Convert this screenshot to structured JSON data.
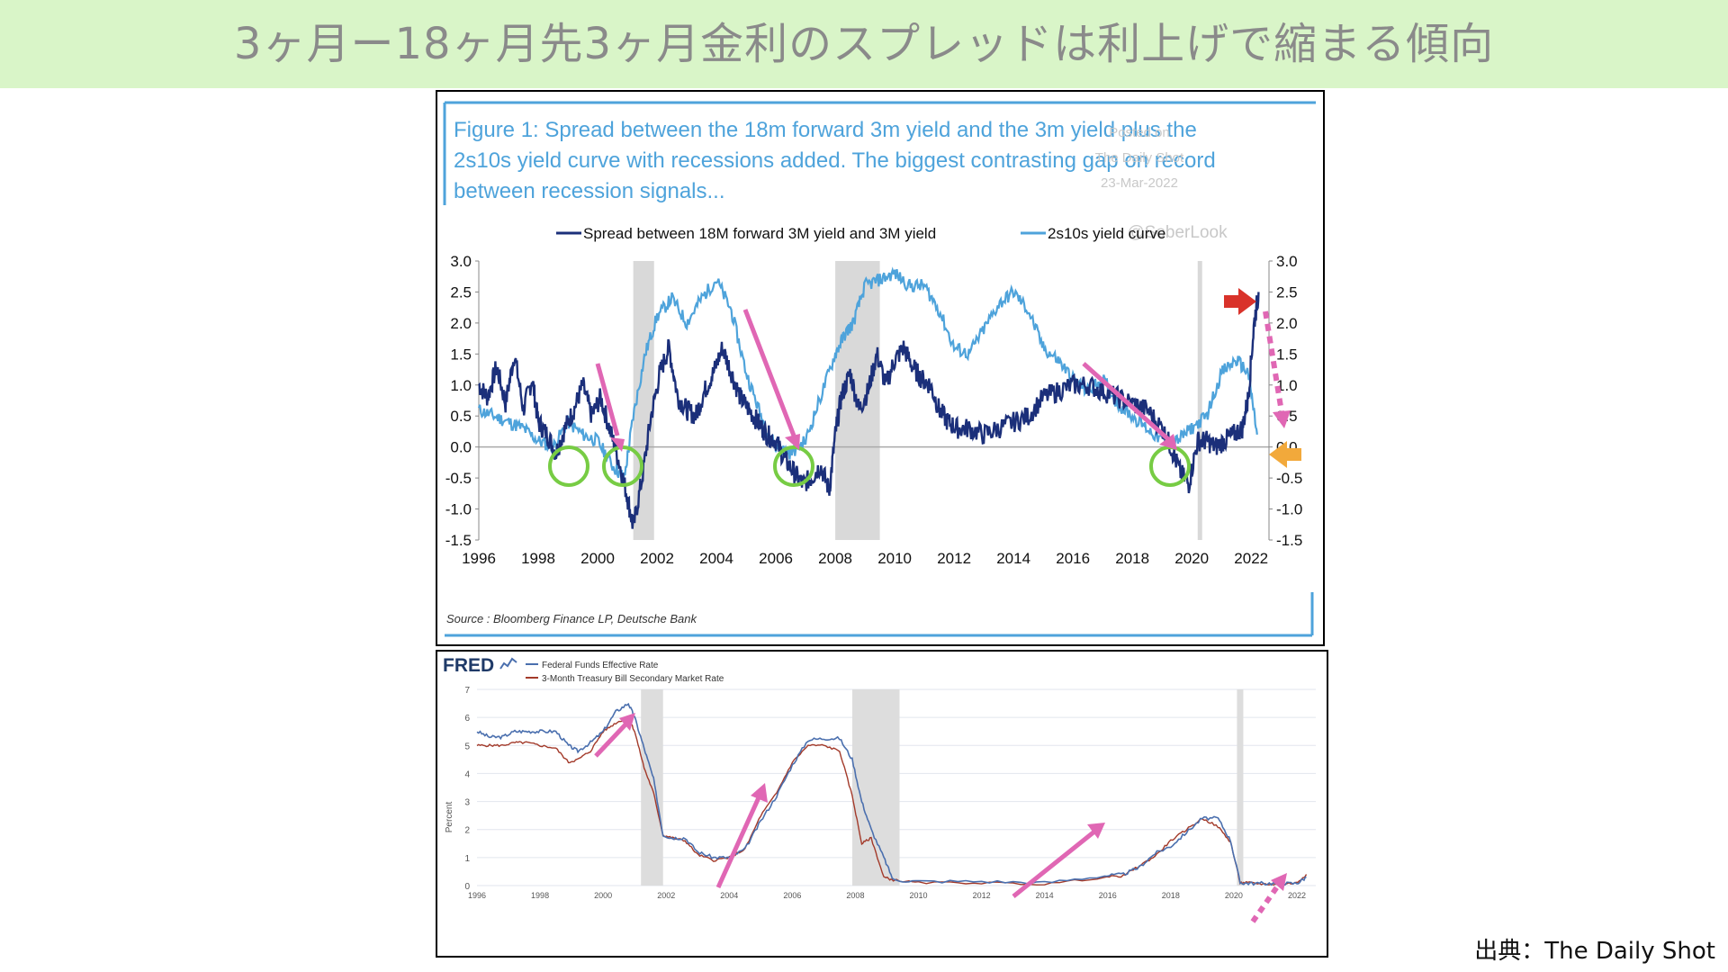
{
  "slide": {
    "title": "3ヶ月ー18ヶ月先3ヶ月金利のスプレッドは利上げで縮まる傾向",
    "credit": "出典：The Daily Shot"
  },
  "colors": {
    "title_bg": "#d9f5c8",
    "spread_line": "#1b2f7a",
    "curve_line": "#4ea3db",
    "arrow_pink": "#e067b4",
    "arrow_red": "#d9322a",
    "arrow_orange": "#f2a93b",
    "circle_green": "#77cc44",
    "fedfunds_line": "#4a6fae",
    "tbill_line": "#a33a2a"
  },
  "chart_data": [
    {
      "type": "line",
      "title": "Figure 1: Spread between the 18m forward 3m yield and the 3m yield plus the 2s10s yield curve with recessions added. The biggest contrasting gap on record between recession signals...",
      "title_lines": [
        "Figure 1: Spread between the 18m forward 3m yield and the 3m yield plus the",
        "2s10s yield curve with recessions added. The biggest contrasting gap on record",
        "between recession signals..."
      ],
      "watermark": [
        "Posted on",
        "The Daily Shot",
        "23-Mar-2022",
        "@SoberLook"
      ],
      "source": "Source : Bloomberg Finance LP, Deutsche Bank",
      "legend_position": "top",
      "xlim": [
        1996,
        2022.6
      ],
      "ylim": [
        -1.5,
        3.0
      ],
      "x_ticks": [
        "1996",
        "1998",
        "2000",
        "2002",
        "2004",
        "2006",
        "2008",
        "2010",
        "2012",
        "2014",
        "2016",
        "2018",
        "2020",
        "2022"
      ],
      "y_ticks": [
        "3.0",
        "2.5",
        "2.0",
        "1.5",
        "1.0",
        "0.5",
        "0.0",
        "-0.5",
        "-1.0",
        "-1.5"
      ],
      "recessions": [
        [
          2001.2,
          2001.9
        ],
        [
          2008.0,
          2009.5
        ],
        [
          2020.2,
          2020.35
        ]
      ],
      "series": [
        {
          "name": "Spread between 18M forward 3M yield and 3M yield",
          "x": [
            1996.0,
            1996.3,
            1996.6,
            1996.9,
            1997.2,
            1997.5,
            1997.8,
            1998.0,
            1998.3,
            1998.6,
            1998.9,
            1999.2,
            1999.5,
            1999.8,
            2000.1,
            2000.4,
            2000.7,
            2001.0,
            2001.2,
            2001.5,
            2001.8,
            2002.1,
            2002.4,
            2002.7,
            2003.0,
            2003.3,
            2003.6,
            2003.9,
            2004.2,
            2004.5,
            2004.8,
            2005.1,
            2005.4,
            2005.7,
            2006.0,
            2006.3,
            2006.6,
            2006.9,
            2007.2,
            2007.5,
            2007.8,
            2008.0,
            2008.2,
            2008.5,
            2008.8,
            2009.1,
            2009.4,
            2009.7,
            2010.0,
            2010.3,
            2010.6,
            2010.9,
            2011.2,
            2011.5,
            2011.8,
            2012.1,
            2012.5,
            2013.0,
            2013.5,
            2014.0,
            2014.5,
            2015.0,
            2015.5,
            2016.0,
            2016.5,
            2017.0,
            2017.5,
            2018.0,
            2018.5,
            2019.0,
            2019.3,
            2019.6,
            2019.9,
            2020.2,
            2020.5,
            2020.8,
            2021.1,
            2021.4,
            2021.7,
            2021.9,
            2022.1,
            2022.25
          ],
          "values": [
            1.0,
            0.8,
            1.3,
            0.7,
            1.5,
            0.6,
            1.1,
            0.4,
            0.2,
            -0.1,
            0.3,
            0.6,
            1.0,
            0.5,
            0.8,
            0.3,
            -0.2,
            -0.8,
            -1.3,
            -0.5,
            0.5,
            1.2,
            1.6,
            0.8,
            0.6,
            0.5,
            0.9,
            1.2,
            1.6,
            1.2,
            0.8,
            0.6,
            0.4,
            0.2,
            0.1,
            -0.2,
            -0.4,
            -0.6,
            -0.5,
            -0.3,
            -0.7,
            0.2,
            0.8,
            1.2,
            0.6,
            0.9,
            1.5,
            1.0,
            1.4,
            1.6,
            1.3,
            1.1,
            1.0,
            0.6,
            0.4,
            0.3,
            0.3,
            0.2,
            0.3,
            0.4,
            0.5,
            0.8,
            0.9,
            1.0,
            1.0,
            0.9,
            0.8,
            0.7,
            0.6,
            0.3,
            0.0,
            -0.4,
            -0.6,
            0.1,
            0.1,
            0.0,
            0.1,
            0.2,
            0.3,
            0.8,
            2.0,
            2.5
          ]
        },
        {
          "name": "2s10s yield curve",
          "x": [
            1996.0,
            1996.5,
            1997.0,
            1997.5,
            1998.0,
            1998.5,
            1999.0,
            1999.5,
            2000.0,
            2000.5,
            2000.9,
            2001.2,
            2001.6,
            2002.0,
            2002.5,
            2003.0,
            2003.5,
            2004.0,
            2004.5,
            2005.0,
            2005.5,
            2006.0,
            2006.5,
            2007.0,
            2007.5,
            2008.0,
            2008.3,
            2008.6,
            2009.0,
            2009.5,
            2010.0,
            2010.5,
            2011.0,
            2011.5,
            2012.0,
            2012.5,
            2013.0,
            2013.5,
            2014.0,
            2014.5,
            2015.0,
            2015.5,
            2016.0,
            2016.5,
            2017.0,
            2017.5,
            2018.0,
            2018.5,
            2019.0,
            2019.5,
            2020.0,
            2020.5,
            2021.0,
            2021.5,
            2021.9,
            2022.2
          ],
          "values": [
            0.6,
            0.5,
            0.4,
            0.3,
            0.1,
            0.0,
            0.4,
            0.2,
            0.1,
            -0.3,
            -0.5,
            0.5,
            1.5,
            2.1,
            2.4,
            2.0,
            2.4,
            2.7,
            2.2,
            1.2,
            0.5,
            0.0,
            -0.1,
            0.1,
            0.8,
            1.5,
            1.8,
            2.0,
            2.6,
            2.7,
            2.8,
            2.6,
            2.6,
            2.2,
            1.6,
            1.5,
            1.9,
            2.3,
            2.5,
            2.2,
            1.6,
            1.4,
            1.1,
            0.9,
            1.1,
            0.7,
            0.5,
            0.3,
            0.1,
            0.1,
            0.3,
            0.5,
            1.2,
            1.4,
            1.2,
            0.2
          ]
        }
      ]
    },
    {
      "type": "line",
      "brand": "FRED",
      "ylabel": "Percent",
      "legend_position": "top-left",
      "xlim": [
        1996,
        2022.6
      ],
      "ylim": [
        0,
        7
      ],
      "x_ticks": [
        "1996",
        "1998",
        "2000",
        "2002",
        "2004",
        "2006",
        "2008",
        "2010",
        "2012",
        "2014",
        "2016",
        "2018",
        "2020",
        "2022"
      ],
      "y_ticks": [
        "0",
        "1",
        "2",
        "3",
        "4",
        "5",
        "6",
        "7"
      ],
      "recessions": [
        [
          2001.2,
          2001.9
        ],
        [
          2007.9,
          2009.4
        ],
        [
          2020.1,
          2020.3
        ]
      ],
      "series": [
        {
          "name": "Federal Funds Effective Rate",
          "x": [
            1996.0,
            1996.4,
            1996.8,
            1997.2,
            1997.6,
            1998.0,
            1998.5,
            1998.9,
            1999.2,
            1999.6,
            2000.0,
            2000.4,
            2000.8,
            2001.0,
            2001.3,
            2001.6,
            2001.9,
            2002.2,
            2002.6,
            2003.0,
            2003.5,
            2004.0,
            2004.5,
            2005.0,
            2005.5,
            2006.0,
            2006.5,
            2007.0,
            2007.5,
            2007.9,
            2008.2,
            2008.5,
            2008.9,
            2009.2,
            2010,
            2012,
            2014,
            2015.9,
            2016.5,
            2017.0,
            2017.5,
            2018.0,
            2018.5,
            2019.0,
            2019.5,
            2019.9,
            2020.2,
            2020.5,
            2021.0,
            2021.5,
            2022.0,
            2022.3
          ],
          "values": [
            5.5,
            5.3,
            5.3,
            5.5,
            5.5,
            5.5,
            5.5,
            5.0,
            4.8,
            5.1,
            5.5,
            6.2,
            6.5,
            6.0,
            4.9,
            3.8,
            1.8,
            1.7,
            1.7,
            1.2,
            1.0,
            1.0,
            1.3,
            2.3,
            3.2,
            4.3,
            5.2,
            5.25,
            5.25,
            4.5,
            3.0,
            2.0,
            1.0,
            0.2,
            0.15,
            0.15,
            0.1,
            0.35,
            0.4,
            0.65,
            1.15,
            1.4,
            1.9,
            2.4,
            2.4,
            1.6,
            0.1,
            0.08,
            0.08,
            0.08,
            0.08,
            0.3
          ]
        },
        {
          "name": "3-Month Treasury Bill Secondary Market Rate",
          "x": [
            1996.0,
            1996.4,
            1996.8,
            1997.2,
            1997.6,
            1998.0,
            1998.5,
            1998.9,
            1999.2,
            1999.6,
            2000.0,
            2000.4,
            2000.8,
            2001.0,
            2001.3,
            2001.6,
            2001.9,
            2002.2,
            2002.6,
            2003.0,
            2003.5,
            2004.0,
            2004.5,
            2005.0,
            2005.5,
            2006.0,
            2006.5,
            2007.0,
            2007.5,
            2007.9,
            2008.2,
            2008.5,
            2008.9,
            2009.2,
            2010,
            2012,
            2014,
            2015.9,
            2016.5,
            2017.0,
            2017.5,
            2018.0,
            2018.5,
            2019.0,
            2019.5,
            2019.9,
            2020.2,
            2020.5,
            2021.0,
            2021.5,
            2022.0,
            2022.3
          ],
          "values": [
            5.0,
            5.0,
            5.0,
            5.1,
            5.1,
            5.0,
            4.9,
            4.4,
            4.5,
            4.8,
            5.5,
            5.8,
            6.0,
            5.5,
            4.2,
            3.3,
            1.8,
            1.7,
            1.6,
            1.1,
            0.9,
            1.0,
            1.3,
            2.5,
            3.3,
            4.4,
            5.0,
            5.0,
            4.8,
            3.2,
            1.5,
            1.7,
            0.3,
            0.2,
            0.1,
            0.1,
            0.05,
            0.3,
            0.35,
            0.7,
            1.05,
            1.6,
            2.0,
            2.4,
            2.1,
            1.55,
            0.1,
            0.1,
            0.05,
            0.05,
            0.1,
            0.4
          ]
        }
      ]
    }
  ]
}
